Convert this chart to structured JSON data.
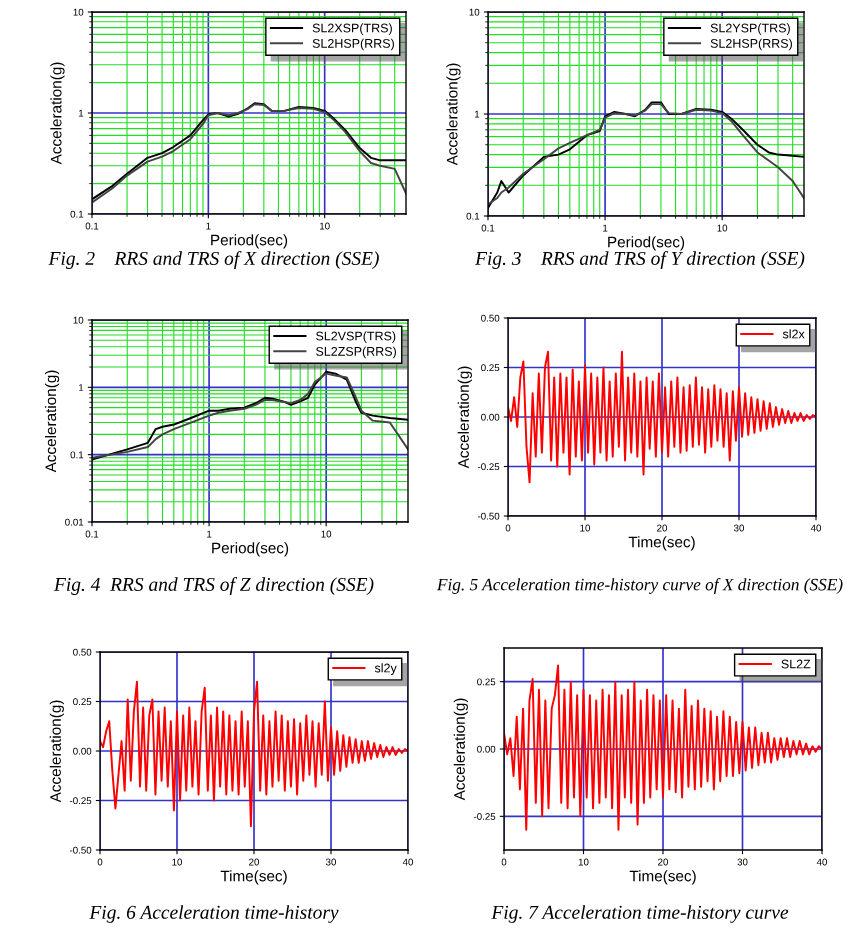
{
  "chart_data": [
    {
      "type": "line",
      "xlabel": "Period(sec)",
      "ylabel": "Acceleration(g)",
      "annotations": [
        "Fig. 2    RRS and TRS of X direction (SSE)"
      ],
      "log": "xy",
      "grid": true,
      "legend": "top right",
      "x": [
        0.1,
        0.15,
        0.2,
        0.3,
        0.4,
        0.5,
        0.7,
        0.9,
        1.0,
        1.2,
        1.5,
        1.8,
        2.2,
        2.5,
        3.0,
        3.5,
        4.5,
        6,
        8,
        10,
        12,
        15,
        20,
        25,
        30,
        40,
        50
      ],
      "series": [
        {
          "name": "SL2XSP(TRS)",
          "color": "#000000",
          "values": [
            0.14,
            0.19,
            0.25,
            0.36,
            0.4,
            0.46,
            0.6,
            0.85,
            0.97,
            1.0,
            0.92,
            0.98,
            1.12,
            1.25,
            1.22,
            1.05,
            1.05,
            1.15,
            1.12,
            1.05,
            0.88,
            0.68,
            0.45,
            0.36,
            0.34,
            0.34,
            0.34
          ]
        },
        {
          "name": "SL2HSP(RRS)",
          "color": "#444444",
          "values": [
            0.13,
            0.18,
            0.24,
            0.33,
            0.37,
            0.42,
            0.55,
            0.78,
            0.95,
            1.0,
            0.95,
            1.0,
            1.1,
            1.22,
            1.2,
            1.05,
            1.05,
            1.12,
            1.1,
            1.02,
            0.85,
            0.65,
            0.42,
            0.32,
            0.3,
            0.28,
            0.16
          ]
        }
      ],
      "xlim": [
        0.1,
        50
      ],
      "ylim": [
        0.1,
        10
      ],
      "xticks": [
        0.1,
        {
          "value": 0.2,
          "label": null
        },
        {
          "value": 0.3,
          "label": null
        },
        {
          "value": 0.4,
          "label": null
        },
        {
          "value": 0.5,
          "label": null
        },
        {
          "value": 0.6,
          "label": null
        },
        {
          "value": 0.7,
          "label": null
        },
        {
          "value": 0.8,
          "label": null
        },
        {
          "value": 0.9,
          "label": null
        },
        1,
        {
          "value": 2,
          "label": null
        },
        {
          "value": 3,
          "label": null
        },
        {
          "value": 4,
          "label": null
        },
        {
          "value": 5,
          "label": null
        },
        {
          "value": 6,
          "label": null
        },
        {
          "value": 7,
          "label": null
        },
        {
          "value": 8,
          "label": null
        },
        {
          "value": 9,
          "label": null
        },
        10,
        {
          "value": 20,
          "label": null
        },
        {
          "value": 30,
          "label": null
        },
        {
          "value": 40,
          "label": null
        }
      ],
      "yticks": [
        0.1,
        {
          "value": 0.2,
          "label": null
        },
        {
          "value": 0.3,
          "label": null
        },
        {
          "value": 0.4,
          "label": null
        },
        {
          "value": 0.5,
          "label": null
        },
        {
          "value": 0.6,
          "label": null
        },
        {
          "value": 0.7,
          "label": null
        },
        {
          "value": 0.8,
          "label": null
        },
        {
          "value": 0.9,
          "label": null
        },
        1,
        {
          "value": 2,
          "label": null
        },
        {
          "value": 3,
          "label": null
        },
        {
          "value": 4,
          "label": null
        },
        {
          "value": 5,
          "label": null
        },
        {
          "value": 6,
          "label": null
        },
        {
          "value": 7,
          "label": null
        },
        {
          "value": 8,
          "label": null
        },
        {
          "value": 9,
          "label": null
        },
        10
      ]
    },
    {
      "type": "line",
      "xlabel": "Period(sec)",
      "ylabel": "Acceleration(g)",
      "annotations": [
        "Fig. 3    RRS and TRS of Y direction (SSE)"
      ],
      "log": "xy",
      "grid": true,
      "legend": "top right",
      "x": [
        0.1,
        0.12,
        0.13,
        0.15,
        0.2,
        0.3,
        0.4,
        0.5,
        0.7,
        0.9,
        1.0,
        1.2,
        1.5,
        1.8,
        2.2,
        2.5,
        3.0,
        3.5,
        4.5,
        6,
        8,
        10,
        12,
        15,
        20,
        25,
        30,
        40,
        50
      ],
      "series": [
        {
          "name": "SL2YSP(TRS)",
          "color": "#000000",
          "values": [
            0.12,
            0.17,
            0.22,
            0.17,
            0.25,
            0.38,
            0.4,
            0.45,
            0.62,
            0.68,
            0.95,
            1.05,
            1.0,
            0.95,
            1.1,
            1.3,
            1.3,
            1.0,
            1.0,
            1.12,
            1.1,
            1.05,
            0.9,
            0.7,
            0.5,
            0.42,
            0.4,
            0.39,
            0.38
          ]
        },
        {
          "name": "SL2HSP(RRS)",
          "color": "#444444",
          "values": [
            0.13,
            0.15,
            0.17,
            0.19,
            0.26,
            0.36,
            0.46,
            0.52,
            0.62,
            0.7,
            0.92,
            1.02,
            1.0,
            0.97,
            1.08,
            1.25,
            1.25,
            1.02,
            1.0,
            1.1,
            1.08,
            1.02,
            0.85,
            0.62,
            0.42,
            0.35,
            0.3,
            0.22,
            0.15
          ]
        }
      ],
      "xlim": [
        0.1,
        50
      ],
      "ylim": [
        0.1,
        10
      ],
      "xticks": [
        0.1,
        {
          "value": 0.2,
          "label": null
        },
        {
          "value": 0.3,
          "label": null
        },
        {
          "value": 0.4,
          "label": null
        },
        {
          "value": 0.5,
          "label": null
        },
        {
          "value": 0.6,
          "label": null
        },
        {
          "value": 0.7,
          "label": null
        },
        {
          "value": 0.8,
          "label": null
        },
        {
          "value": 0.9,
          "label": null
        },
        1,
        {
          "value": 2,
          "label": null
        },
        {
          "value": 3,
          "label": null
        },
        {
          "value": 4,
          "label": null
        },
        {
          "value": 5,
          "label": null
        },
        {
          "value": 6,
          "label": null
        },
        {
          "value": 7,
          "label": null
        },
        {
          "value": 8,
          "label": null
        },
        {
          "value": 9,
          "label": null
        },
        10,
        {
          "value": 20,
          "label": null
        },
        {
          "value": 30,
          "label": null
        },
        {
          "value": 40,
          "label": null
        }
      ],
      "yticks": [
        0.1,
        {
          "value": 0.2,
          "label": null
        },
        {
          "value": 0.3,
          "label": null
        },
        {
          "value": 0.4,
          "label": null
        },
        {
          "value": 0.5,
          "label": null
        },
        {
          "value": 0.6,
          "label": null
        },
        {
          "value": 0.7,
          "label": null
        },
        {
          "value": 0.8,
          "label": null
        },
        {
          "value": 0.9,
          "label": null
        },
        1,
        {
          "value": 2,
          "label": null
        },
        {
          "value": 3,
          "label": null
        },
        {
          "value": 4,
          "label": null
        },
        {
          "value": 5,
          "label": null
        },
        {
          "value": 6,
          "label": null
        },
        {
          "value": 7,
          "label": null
        },
        {
          "value": 8,
          "label": null
        },
        {
          "value": 9,
          "label": null
        },
        10
      ]
    },
    {
      "type": "line",
      "xlabel": "Period(sec)",
      "ylabel": "Acceleration(g)",
      "annotations": [
        "Fig. 4  RRS and TRS of Z direction (SSE)"
      ],
      "log": "xy",
      "grid": true,
      "legend": "top right",
      "x": [
        0.1,
        0.2,
        0.3,
        0.35,
        0.4,
        0.5,
        0.7,
        1.0,
        1.2,
        1.5,
        2.0,
        2.5,
        3,
        3.5,
        4.5,
        5,
        6,
        7,
        8,
        10,
        12,
        15,
        18,
        20,
        25,
        35,
        50
      ],
      "series": [
        {
          "name": "SL2VSP(TRS)",
          "color": "#000000",
          "values": [
            0.085,
            0.12,
            0.15,
            0.24,
            0.26,
            0.28,
            0.35,
            0.45,
            0.45,
            0.48,
            0.5,
            0.58,
            0.7,
            0.68,
            0.6,
            0.55,
            0.62,
            0.7,
            1.1,
            1.7,
            1.6,
            1.3,
            0.6,
            0.42,
            0.38,
            0.35,
            0.33
          ]
        },
        {
          "name": "SL2ZSP(RRS)",
          "color": "#444444",
          "values": [
            0.09,
            0.11,
            0.13,
            0.17,
            0.2,
            0.24,
            0.3,
            0.38,
            0.42,
            0.45,
            0.48,
            0.55,
            0.65,
            0.65,
            0.6,
            0.58,
            0.65,
            0.8,
            1.2,
            1.6,
            1.5,
            1.4,
            0.7,
            0.45,
            0.32,
            0.3,
            0.12
          ]
        }
      ],
      "xlim": [
        0.1,
        50
      ],
      "ylim": [
        0.01,
        10
      ],
      "xticks": [
        0.1,
        {
          "value": 0.2,
          "label": null
        },
        {
          "value": 0.3,
          "label": null
        },
        {
          "value": 0.4,
          "label": null
        },
        {
          "value": 0.5,
          "label": null
        },
        {
          "value": 0.6,
          "label": null
        },
        {
          "value": 0.7,
          "label": null
        },
        {
          "value": 0.8,
          "label": null
        },
        {
          "value": 0.9,
          "label": null
        },
        1,
        {
          "value": 2,
          "label": null
        },
        {
          "value": 3,
          "label": null
        },
        {
          "value": 4,
          "label": null
        },
        {
          "value": 5,
          "label": null
        },
        {
          "value": 6,
          "label": null
        },
        {
          "value": 7,
          "label": null
        },
        {
          "value": 8,
          "label": null
        },
        {
          "value": 9,
          "label": null
        },
        10,
        {
          "value": 20,
          "label": null
        },
        {
          "value": 30,
          "label": null
        },
        {
          "value": 40,
          "label": null
        }
      ],
      "yticks": [
        0.01,
        {
          "value": 0.02,
          "label": null
        },
        {
          "value": 0.03,
          "label": null
        },
        {
          "value": 0.04,
          "label": null
        },
        {
          "value": 0.05,
          "label": null
        },
        {
          "value": 0.06,
          "label": null
        },
        {
          "value": 0.07,
          "label": null
        },
        {
          "value": 0.08,
          "label": null
        },
        {
          "value": 0.09,
          "label": null
        },
        0.1,
        {
          "value": 0.2,
          "label": null
        },
        {
          "value": 0.3,
          "label": null
        },
        {
          "value": 0.4,
          "label": null
        },
        {
          "value": 0.5,
          "label": null
        },
        {
          "value": 0.6,
          "label": null
        },
        {
          "value": 0.7,
          "label": null
        },
        {
          "value": 0.8,
          "label": null
        },
        {
          "value": 0.9,
          "label": null
        },
        1,
        {
          "value": 2,
          "label": null
        },
        {
          "value": 3,
          "label": null
        },
        {
          "value": 4,
          "label": null
        },
        {
          "value": 5,
          "label": null
        },
        {
          "value": 6,
          "label": null
        },
        {
          "value": 7,
          "label": null
        },
        {
          "value": 8,
          "label": null
        },
        {
          "value": 9,
          "label": null
        },
        10
      ]
    },
    {
      "type": "line",
      "xlabel": "Time(sec)",
      "ylabel": "Acceleration(g)",
      "annotations": [
        "Fig. 5 Acceleration time-history curve of X direction (SSE)"
      ],
      "grid": true,
      "legend": "top right",
      "x": [
        0,
        0.4,
        0.8,
        1.2,
        1.6,
        2,
        2.4,
        2.8,
        3.2,
        3.6,
        4,
        4.4,
        4.8,
        5.2,
        5.6,
        6,
        6.4,
        6.8,
        7.2,
        7.6,
        8,
        8.4,
        8.8,
        9.2,
        9.6,
        10,
        10.4,
        10.8,
        11.2,
        11.6,
        12,
        12.4,
        12.8,
        13.2,
        13.6,
        14,
        14.4,
        14.8,
        15.2,
        15.6,
        16,
        16.4,
        16.8,
        17.2,
        17.6,
        18,
        18.4,
        18.8,
        19.2,
        19.6,
        20,
        20.4,
        20.8,
        21.2,
        21.6,
        22,
        22.4,
        22.8,
        23.2,
        23.6,
        24,
        24.4,
        24.8,
        25.2,
        25.6,
        26,
        26.4,
        26.8,
        27.2,
        27.6,
        28,
        28.4,
        28.8,
        29.2,
        29.6,
        30,
        30.4,
        30.8,
        31.2,
        31.6,
        32,
        32.4,
        32.8,
        33.2,
        33.6,
        34,
        34.4,
        34.8,
        35.2,
        35.6,
        36,
        36.4,
        36.8,
        37.2,
        37.6,
        38,
        38.4,
        38.8,
        39.2,
        39.6,
        40
      ],
      "series": [
        {
          "name": "sl2x",
          "color": "#ff0000",
          "values": [
            0.05,
            -0.02,
            0.1,
            -0.05,
            0.2,
            0.28,
            -0.15,
            -0.33,
            0.12,
            -0.2,
            0.22,
            -0.18,
            0.25,
            0.33,
            -0.22,
            0.2,
            -0.25,
            0.22,
            -0.18,
            0.2,
            -0.29,
            0.24,
            -0.2,
            0.18,
            -0.22,
            0.26,
            -0.18,
            0.22,
            -0.24,
            0.2,
            -0.18,
            0.25,
            -0.22,
            0.18,
            -0.2,
            0.22,
            -0.15,
            0.33,
            -0.22,
            0.2,
            -0.18,
            0.22,
            -0.2,
            0.18,
            -0.29,
            0.2,
            -0.16,
            0.18,
            -0.2,
            0.22,
            -0.18,
            0.15,
            -0.2,
            0.18,
            -0.15,
            0.2,
            -0.18,
            0.15,
            -0.17,
            0.16,
            -0.15,
            0.2,
            -0.14,
            0.15,
            -0.18,
            0.14,
            -0.15,
            0.16,
            -0.12,
            0.14,
            -0.15,
            0.12,
            -0.22,
            0.13,
            -0.12,
            0.15,
            -0.1,
            0.12,
            -0.09,
            0.1,
            -0.08,
            0.09,
            -0.07,
            0.08,
            -0.06,
            0.07,
            -0.05,
            0.05,
            -0.04,
            0.04,
            -0.03,
            0.03,
            -0.03,
            0.02,
            -0.02,
            0.02,
            -0.02,
            0.01,
            -0.01,
            0.01,
            0.0
          ]
        }
      ],
      "xlim": [
        0,
        40
      ],
      "ylim": [
        -0.5,
        0.5
      ],
      "xticks": [
        0,
        10,
        20,
        30,
        40
      ],
      "yticks": [
        {
          "value": -0.5,
          "label": "-0.50"
        },
        {
          "value": -0.25,
          "label": "-0.25"
        },
        {
          "value": 0,
          "label": "0.00"
        },
        {
          "value": 0.25,
          "label": "0.25"
        },
        {
          "value": 0.5,
          "label": "0.50"
        }
      ]
    },
    {
      "type": "line",
      "xlabel": "Time(sec)",
      "ylabel": "Acceleration(g)",
      "annotations": [
        "Fig. 6 Acceleration time-history"
      ],
      "grid": true,
      "legend": "top right",
      "x": [
        0,
        0.4,
        0.8,
        1.2,
        1.6,
        2,
        2.4,
        2.8,
        3.2,
        3.6,
        4,
        4.4,
        4.8,
        5.2,
        5.6,
        6,
        6.4,
        6.8,
        7.2,
        7.6,
        8,
        8.4,
        8.8,
        9.2,
        9.6,
        10,
        10.4,
        10.8,
        11.2,
        11.6,
        12,
        12.4,
        12.8,
        13.2,
        13.6,
        14,
        14.4,
        14.8,
        15.2,
        15.6,
        16,
        16.4,
        16.8,
        17.2,
        17.6,
        18,
        18.4,
        18.8,
        19.2,
        19.6,
        20,
        20.4,
        20.8,
        21.2,
        21.6,
        22,
        22.4,
        22.8,
        23.2,
        23.6,
        24,
        24.4,
        24.8,
        25.2,
        25.6,
        26,
        26.4,
        26.8,
        27.2,
        27.6,
        28,
        28.4,
        28.8,
        29.2,
        29.6,
        30,
        30.4,
        30.8,
        31.2,
        31.6,
        32,
        32.4,
        32.8,
        33.2,
        33.6,
        34,
        34.4,
        34.8,
        35.2,
        35.6,
        36,
        36.4,
        36.8,
        37.2,
        37.6,
        38,
        38.4,
        38.8,
        39.2,
        39.6,
        40
      ],
      "series": [
        {
          "name": "sl2y",
          "color": "#ff0000",
          "values": [
            0.05,
            0.02,
            0.1,
            0.15,
            -0.1,
            -0.29,
            -0.12,
            0.05,
            -0.2,
            0.26,
            -0.15,
            0.2,
            0.35,
            -0.18,
            0.22,
            -0.2,
            0.18,
            0.26,
            -0.22,
            0.2,
            -0.15,
            0.22,
            -0.18,
            0.15,
            -0.3,
            0.2,
            -0.25,
            0.18,
            -0.2,
            0.22,
            -0.18,
            0.15,
            -0.22,
            0.2,
            0.32,
            -0.2,
            0.18,
            -0.25,
            0.22,
            -0.18,
            0.2,
            -0.22,
            0.18,
            -0.2,
            0.15,
            -0.22,
            0.2,
            -0.18,
            0.15,
            -0.38,
            0.2,
            0.35,
            -0.2,
            0.18,
            -0.22,
            0.15,
            -0.18,
            0.2,
            -0.15,
            0.18,
            -0.2,
            0.15,
            -0.18,
            0.16,
            -0.22,
            0.14,
            -0.15,
            0.18,
            -0.12,
            0.15,
            -0.18,
            0.14,
            -0.12,
            0.25,
            -0.15,
            0.12,
            -0.12,
            0.1,
            -0.1,
            0.08,
            -0.08,
            0.07,
            -0.06,
            0.06,
            -0.06,
            0.05,
            -0.05,
            0.05,
            -0.04,
            0.04,
            -0.03,
            0.03,
            -0.03,
            0.02,
            -0.02,
            0.02,
            -0.02,
            0.01,
            -0.01,
            0.01,
            0.0
          ]
        }
      ],
      "xlim": [
        0,
        40
      ],
      "ylim": [
        -0.5,
        0.5
      ],
      "xticks": [
        0,
        10,
        20,
        30,
        40
      ],
      "yticks": [
        {
          "value": -0.5,
          "label": "-0.50"
        },
        {
          "value": -0.25,
          "label": "-0.25"
        },
        {
          "value": 0,
          "label": "0.00"
        },
        {
          "value": 0.25,
          "label": "0.25"
        },
        {
          "value": 0.5,
          "label": "0.50"
        }
      ]
    },
    {
      "type": "line",
      "xlabel": "Time(sec)",
      "ylabel": "Acceleration(g)",
      "annotations": [
        "Fig. 7 Acceleration time-history curve"
      ],
      "grid": true,
      "legend": "top right",
      "x": [
        0,
        0.4,
        0.8,
        1.2,
        1.6,
        2,
        2.4,
        2.8,
        3.2,
        3.6,
        4,
        4.4,
        4.8,
        5.2,
        5.6,
        6,
        6.4,
        6.8,
        7.2,
        7.6,
        8,
        8.4,
        8.8,
        9.2,
        9.6,
        10,
        10.4,
        10.8,
        11.2,
        11.6,
        12,
        12.4,
        12.8,
        13.2,
        13.6,
        14,
        14.4,
        14.8,
        15.2,
        15.6,
        16,
        16.4,
        16.8,
        17.2,
        17.6,
        18,
        18.4,
        18.8,
        19.2,
        19.6,
        20,
        20.4,
        20.8,
        21.2,
        21.6,
        22,
        22.4,
        22.8,
        23.2,
        23.6,
        24,
        24.4,
        24.8,
        25.2,
        25.6,
        26,
        26.4,
        26.8,
        27.2,
        27.6,
        28,
        28.4,
        28.8,
        29.2,
        29.6,
        30,
        30.4,
        30.8,
        31.2,
        31.6,
        32,
        32.4,
        32.8,
        33.2,
        33.6,
        34,
        34.4,
        34.8,
        35.2,
        35.6,
        36,
        36.4,
        36.8,
        37.2,
        37.6,
        38,
        38.4,
        38.8,
        39.2,
        39.6,
        40
      ],
      "series": [
        {
          "name": "SL2Z",
          "color": "#ff0000",
          "values": [
            0.06,
            -0.02,
            0.04,
            -0.1,
            0.12,
            -0.15,
            0.15,
            -0.3,
            0.18,
            0.26,
            -0.2,
            0.22,
            -0.25,
            0.18,
            -0.22,
            0.15,
            0.2,
            0.31,
            -0.2,
            0.22,
            -0.22,
            0.25,
            -0.18,
            0.2,
            -0.25,
            0.22,
            -0.18,
            0.2,
            -0.22,
            0.18,
            -0.2,
            0.22,
            -0.18,
            0.2,
            -0.22,
            0.25,
            -0.3,
            0.2,
            -0.18,
            0.22,
            -0.2,
            0.25,
            -0.28,
            0.18,
            -0.2,
            0.22,
            -0.18,
            0.2,
            -0.15,
            0.18,
            -0.18,
            0.2,
            -0.15,
            0.18,
            -0.16,
            0.15,
            -0.18,
            0.22,
            -0.14,
            0.16,
            -0.15,
            0.18,
            -0.14,
            0.15,
            -0.12,
            0.14,
            -0.15,
            0.12,
            -0.12,
            0.14,
            -0.1,
            0.12,
            -0.1,
            0.1,
            -0.09,
            0.1,
            -0.08,
            0.08,
            -0.07,
            0.08,
            -0.06,
            0.06,
            -0.05,
            0.06,
            -0.05,
            0.04,
            -0.04,
            0.04,
            -0.03,
            0.04,
            -0.03,
            0.03,
            -0.02,
            0.03,
            -0.02,
            0.02,
            -0.02,
            0.01,
            -0.01,
            0.01,
            0.0
          ]
        }
      ],
      "xlim": [
        0,
        40
      ],
      "ylim": [
        -0.375,
        0.375
      ],
      "xticks": [
        0,
        10,
        20,
        30,
        40
      ],
      "yticks": [
        {
          "value": -0.25,
          "label": "-0.25"
        },
        {
          "value": 0,
          "label": "0.00"
        },
        {
          "value": 0.25,
          "label": "0.25"
        }
      ]
    }
  ]
}
